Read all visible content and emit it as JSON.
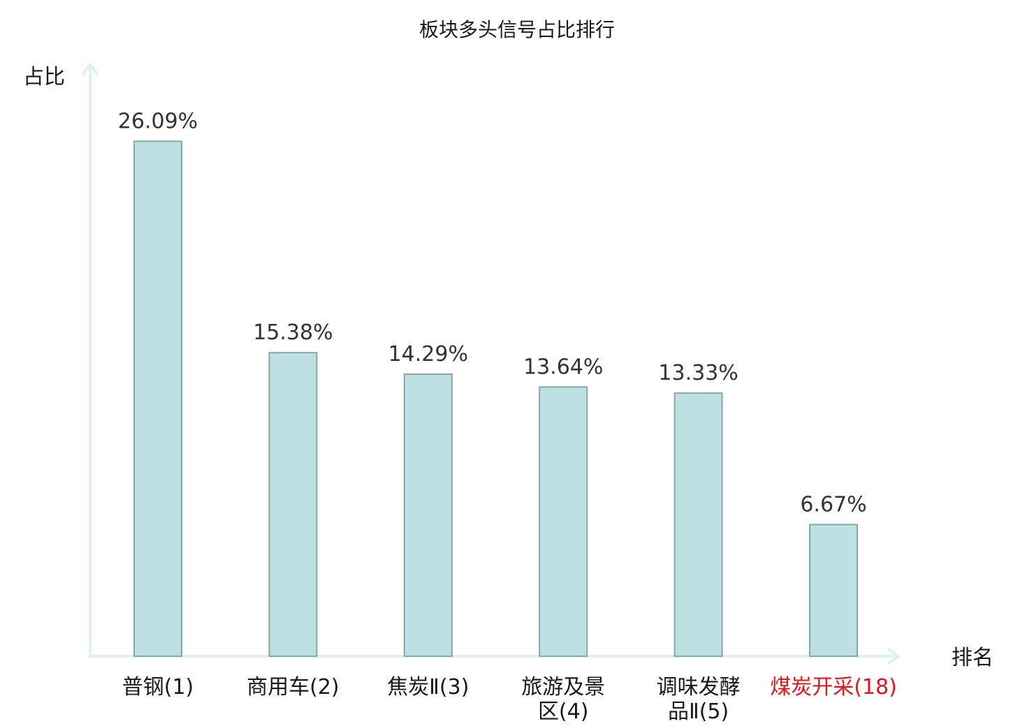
{
  "chart_data": {
    "type": "bar",
    "title": "板块多头信号占比排行",
    "xlabel": "排名",
    "ylabel": "占比",
    "ylim": [
      0,
      30
    ],
    "grid": false,
    "legend": "none",
    "categories": [
      {
        "name": "普钢",
        "rank": "(1)",
        "lines": [
          "普钢(1)"
        ],
        "highlight": false
      },
      {
        "name": "商用车",
        "rank": "(2)",
        "lines": [
          "商用车(2)"
        ],
        "highlight": false
      },
      {
        "name": "焦炭Ⅱ",
        "rank": "(3)",
        "lines": [
          "焦炭Ⅱ(3)"
        ],
        "highlight": false
      },
      {
        "name": "旅游及景区",
        "rank": "(4)",
        "lines": [
          "旅游及景",
          "区(4)"
        ],
        "highlight": false
      },
      {
        "name": "调味发酵品Ⅱ",
        "rank": "(5)",
        "lines": [
          "调味发酵",
          "品Ⅱ(5)"
        ],
        "highlight": false
      },
      {
        "name": "煤炭开采",
        "rank": "(18)",
        "lines": [
          "煤炭开采(18)"
        ],
        "highlight": true
      }
    ],
    "values": [
      26.09,
      15.38,
      14.29,
      13.64,
      13.33,
      6.67
    ],
    "value_labels": [
      "26.09%",
      "15.38%",
      "14.29%",
      "13.64%",
      "13.33%",
      "6.67%"
    ]
  },
  "colors": {
    "bar_fill": "#bde0e3",
    "bar_stroke": "#86a7a9",
    "axis": "#e0f2f0",
    "text": "#1a1a1a",
    "value_text": "#333333",
    "highlight_text": "#e8141a"
  }
}
